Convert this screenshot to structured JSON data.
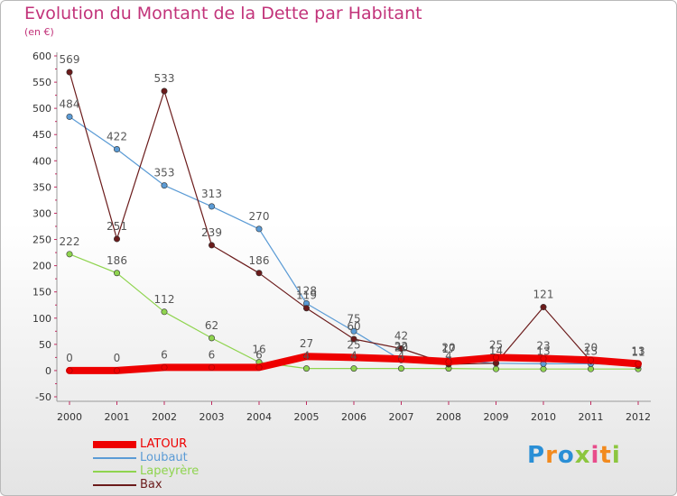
{
  "header": {
    "title": "Evolution du Montant de la Dette par Habitant",
    "subtitle": "(en €)"
  },
  "logo": {
    "letters": [
      {
        "ch": "P",
        "color": "#2a8fd6"
      },
      {
        "ch": "r",
        "color": "#f28a1e"
      },
      {
        "ch": "o",
        "color": "#2a8fd6"
      },
      {
        "ch": "x",
        "color": "#8cc63f"
      },
      {
        "ch": "i",
        "color": "#e84c8b"
      },
      {
        "ch": "t",
        "color": "#f28a1e"
      },
      {
        "ch": "i",
        "color": "#8cc63f"
      }
    ]
  },
  "chart_data": {
    "type": "line",
    "x": [
      "2000",
      "2001",
      "2002",
      "2003",
      "2004",
      "2005",
      "2006",
      "2007",
      "2008",
      "2009",
      "2010",
      "2011",
      "2012"
    ],
    "ylim": [
      -50,
      600
    ],
    "yticks": [
      -50,
      0,
      50,
      100,
      150,
      200,
      250,
      300,
      350,
      400,
      450,
      500,
      550,
      600
    ],
    "grid": false,
    "legend_position": "bottom-left",
    "series": [
      {
        "name": "LATOUR",
        "color": "#ee0000",
        "values": [
          0,
          0,
          6,
          6,
          6,
          27,
          25,
          22,
          17,
          25,
          23,
          20,
          13
        ],
        "labels": [
          "0",
          "0",
          "6",
          "6",
          "6",
          "27",
          "25",
          "22",
          "17",
          "25",
          "23",
          "20",
          "13"
        ]
      },
      {
        "name": "Loubaut",
        "color": "#5b9bd5",
        "values": [
          484,
          422,
          353,
          313,
          270,
          128,
          75,
          20,
          20,
          14,
          13,
          13,
          11
        ],
        "labels": [
          "484",
          "422",
          "353",
          "313",
          "270",
          "128",
          "75",
          "20",
          "20",
          "14",
          "13",
          "13",
          "11"
        ]
      },
      {
        "name": "Lapeyrère",
        "color": "#8fd44f",
        "values": [
          222,
          186,
          112,
          62,
          16,
          4,
          4,
          4,
          4,
          3,
          3,
          3,
          3
        ],
        "labels": [
          "222",
          "186",
          "112",
          "62",
          "16",
          "4",
          "4",
          "4",
          "4",
          "",
          "",
          "",
          ""
        ]
      },
      {
        "name": "Bax",
        "color": "#6b1b1b",
        "values": [
          569,
          251,
          533,
          239,
          186,
          119,
          60,
          42,
          12,
          14,
          121,
          18,
          9
        ],
        "labels": [
          "569",
          "251",
          "533",
          "239",
          "186",
          "119",
          "60",
          "42",
          "",
          "",
          "121",
          "",
          ""
        ]
      }
    ]
  }
}
